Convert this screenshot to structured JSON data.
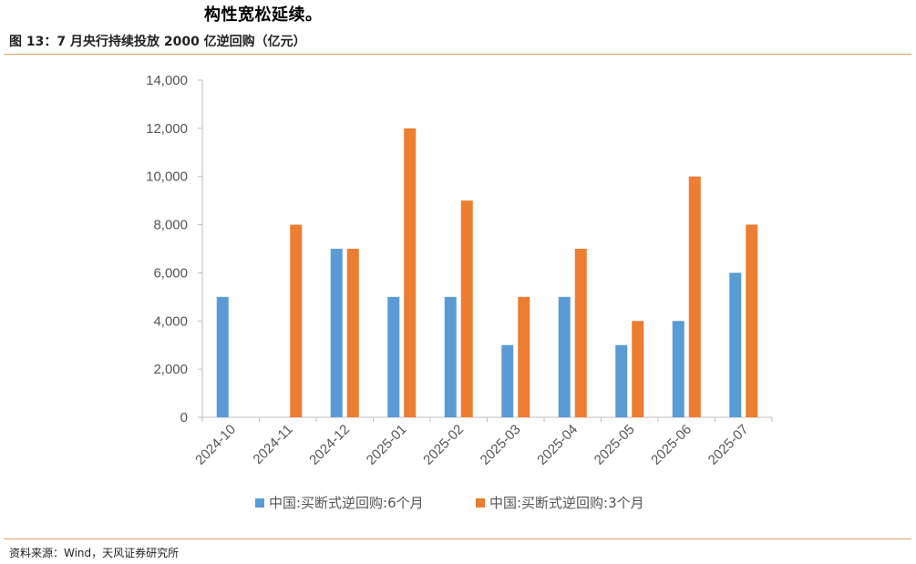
{
  "heading": "构性宽松延续。",
  "figure_title": "图 13：7 月央行持续投放 2000 亿逆回购（亿元）",
  "source": "资料来源：Wind，天风证券研究所",
  "colors": {
    "series1": "#5b9bd5",
    "series2": "#ed7d31",
    "rule": "#e8a063",
    "axis": "#bfbfbf"
  },
  "chart_data": {
    "type": "bar",
    "categories": [
      "2024-10",
      "2024-11",
      "2024-12",
      "2025-01",
      "2025-02",
      "2025-03",
      "2025-04",
      "2025-05",
      "2025-06",
      "2025-07"
    ],
    "series": [
      {
        "name": "中国:买断式逆回购:6个月",
        "values": [
          5000,
          0,
          7000,
          5000,
          5000,
          3000,
          5000,
          3000,
          4000,
          6000
        ]
      },
      {
        "name": "中国:买断式逆回购:3个月",
        "values": [
          0,
          8000,
          7000,
          12000,
          9000,
          5000,
          7000,
          4000,
          10000,
          8000
        ]
      }
    ],
    "yticks": [
      "0",
      "2,000",
      "4,000",
      "6,000",
      "8,000",
      "10,000",
      "12,000",
      "14,000"
    ],
    "ylim": [
      0,
      14000
    ],
    "grid": false,
    "legend": "bottom"
  }
}
